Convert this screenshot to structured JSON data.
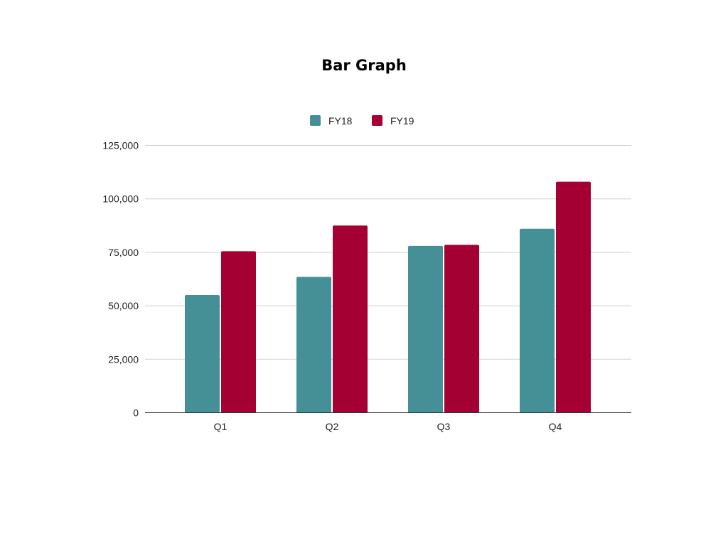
{
  "chart_data": {
    "type": "bar",
    "title": "Bar Graph",
    "xlabel": "",
    "ylabel": "",
    "categories": [
      "Q1",
      "Q2",
      "Q3",
      "Q4"
    ],
    "series": [
      {
        "name": "FY18",
        "color": "#458f97",
        "values": [
          55000,
          63500,
          78000,
          86000
        ]
      },
      {
        "name": "FY19",
        "color": "#a50034",
        "values": [
          75500,
          87500,
          78500,
          108000
        ]
      }
    ],
    "ylim": [
      0,
      125000
    ],
    "yticks": [
      0,
      25000,
      50000,
      75000,
      100000,
      125000
    ],
    "ytick_labels": [
      "0",
      "25,000",
      "50,000",
      "75,000",
      "100,000",
      "125,000"
    ],
    "grid": true,
    "legend_position": "top"
  }
}
